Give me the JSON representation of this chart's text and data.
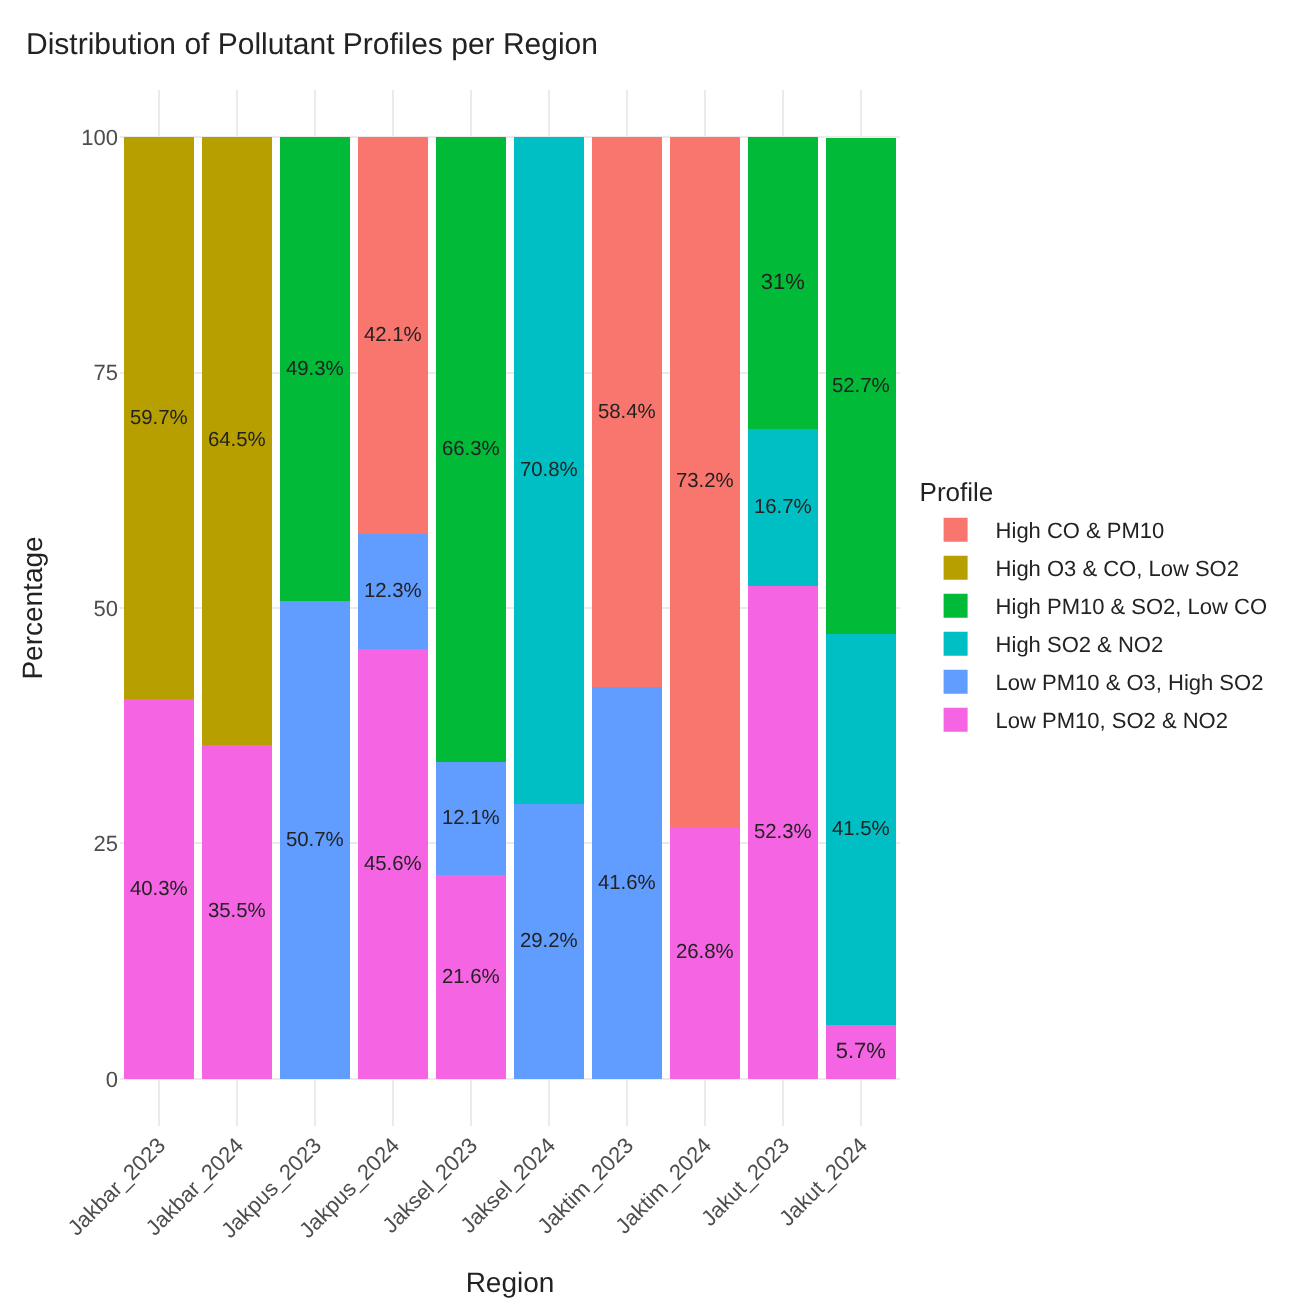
{
  "chart_data": {
    "type": "bar",
    "stacked": true,
    "title": "Distribution of Pollutant Profiles per Region",
    "xlabel": "Region",
    "ylabel": "Percentage",
    "legend_title": "Profile",
    "legend": "right",
    "categories": [
      "Jakbar_2023",
      "Jakbar_2024",
      "Jakpus_2023",
      "Jakpus_2024",
      "Jaksel_2023",
      "Jaksel_2024",
      "Jaktim_2023",
      "Jaktim_2024",
      "Jakut_2023",
      "Jakut_2024"
    ],
    "ylim": [
      -5,
      105
    ],
    "yticks": [
      0,
      25,
      50,
      75,
      100
    ],
    "grid": true,
    "series": [
      {
        "name": "Low PM10, SO2 & NO2",
        "color": "#f564e3",
        "values": [
          40.3,
          35.5,
          null,
          45.6,
          21.6,
          null,
          null,
          26.8,
          52.3,
          5.7
        ],
        "value_labels": [
          "40.3%",
          "35.5%",
          null,
          "45.6%",
          "21.6%",
          null,
          null,
          "26.8%",
          "52.3%",
          "5.7%"
        ]
      },
      {
        "name": "Low PM10 & O3, High SO2",
        "color": "#619cff",
        "values": [
          null,
          null,
          50.7,
          12.3,
          12.1,
          29.2,
          41.6,
          null,
          null,
          null
        ],
        "value_labels": [
          null,
          null,
          "50.7%",
          "12.3%",
          "12.1%",
          "29.2%",
          "41.6%",
          null,
          null,
          null
        ]
      },
      {
        "name": "High SO2 & NO2",
        "color": "#00bfc4",
        "values": [
          null,
          null,
          null,
          null,
          null,
          70.8,
          null,
          null,
          16.7,
          41.5
        ],
        "value_labels": [
          null,
          null,
          null,
          null,
          null,
          "70.8%",
          null,
          null,
          "16.7%",
          "41.5%"
        ]
      },
      {
        "name": "High PM10 & SO2, Low CO",
        "color": "#00ba38",
        "values": [
          null,
          null,
          49.3,
          null,
          66.3,
          null,
          null,
          null,
          31,
          52.7
        ],
        "value_labels": [
          null,
          null,
          "49.3%",
          null,
          "66.3%",
          null,
          null,
          null,
          "31%",
          "52.7%"
        ]
      },
      {
        "name": "High O3 & CO, Low SO2",
        "color": "#b79f00",
        "values": [
          59.7,
          64.5,
          null,
          null,
          null,
          null,
          null,
          null,
          null,
          null
        ],
        "value_labels": [
          "59.7%",
          "64.5%",
          null,
          null,
          null,
          null,
          null,
          null,
          null,
          null
        ]
      },
      {
        "name": "High CO & PM10",
        "color": "#f8766d",
        "values": [
          null,
          null,
          null,
          42.1,
          null,
          null,
          58.4,
          73.2,
          null,
          null
        ],
        "value_labels": [
          null,
          null,
          null,
          "42.1%",
          null,
          null,
          "58.4%",
          "73.2%",
          null,
          null
        ]
      }
    ]
  }
}
